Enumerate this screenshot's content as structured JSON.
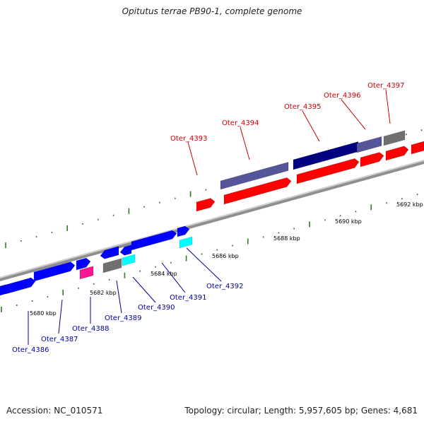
{
  "title": "Opitutus terrae PB90-1, complete genome",
  "accession_label": "Accession: NC_010571",
  "summary_label": "Topology: circular; Length: 5,957,605 bp; Genes: 4,681",
  "colors": {
    "backbone": "#8f8f8f",
    "tick": "#2e7d1e",
    "cds": "#ff0000",
    "cds_b": "#0000ff",
    "hypo_top": "#55559a",
    "hypo_dark": "#000080",
    "gray": "#707070",
    "magenta": "#ff1493",
    "cyan": "#00ffff",
    "label_red": "#cc0000",
    "label_blue": "#000099"
  },
  "scale_labels": [
    "5680 kbp",
    "5682 kbp",
    "5684 kbp",
    "5686 kbp",
    "5688 kbp",
    "5690 kbp",
    "5692 kbp"
  ],
  "genes_top": [
    "Oter_4393",
    "Oter_4394",
    "Oter_4395",
    "Oter_4396",
    "Oter_4397"
  ],
  "genes_bottom": [
    "Oter_4386",
    "Oter_4387",
    "Oter_4388",
    "Oter_4389",
    "Oter_4390",
    "Oter_4391",
    "Oter_4392"
  ]
}
